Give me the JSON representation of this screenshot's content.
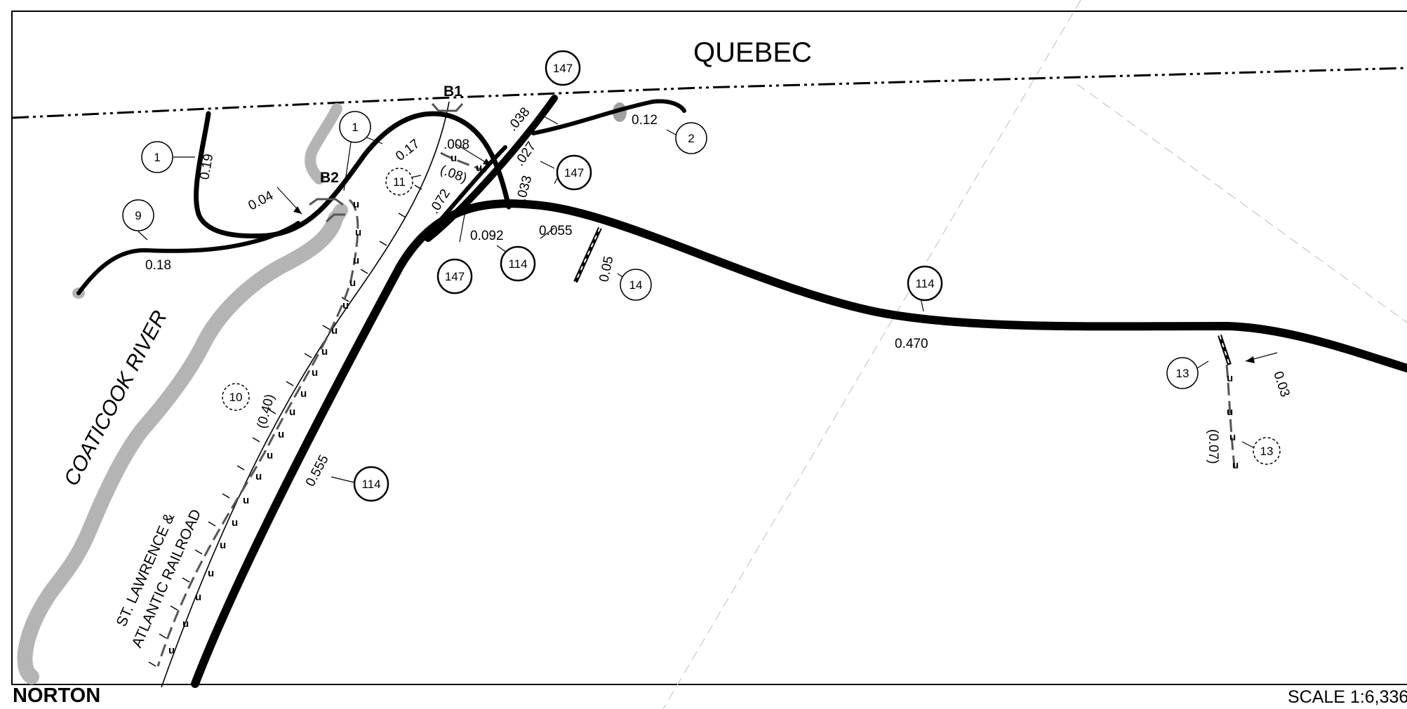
{
  "map": {
    "region_label": "QUEBEC",
    "river_label": "COATICOOK   RIVER",
    "railroad_label": [
      "ST. LAWRENCE &",
      "ATLANTIC RAILROAD"
    ],
    "bridges": [
      "B1",
      "B2"
    ],
    "route_markers": [
      "1",
      "1",
      "9",
      "2",
      "147",
      "147",
      "147",
      "114",
      "114",
      "114",
      "14",
      "13"
    ],
    "dashed_markers": [
      "11",
      "10",
      "13"
    ],
    "segment_labels": [
      "0.19",
      "0.04",
      "0.18",
      "0.17",
      ".008",
      "(.08)",
      ".072",
      ".038",
      ".027",
      ".033",
      "0.12",
      "0.092",
      "0.055",
      "0.05",
      "0.555",
      "(0.40)",
      "0.470",
      "0.03",
      "(0.07)"
    ]
  },
  "footer": {
    "town": "NORTON",
    "scale": "SCALE 1:6,336"
  },
  "colors": {
    "road": "#000000",
    "river": "#b4b4b4",
    "border_line": "#000000",
    "guide_line": "#c8c8c8"
  }
}
